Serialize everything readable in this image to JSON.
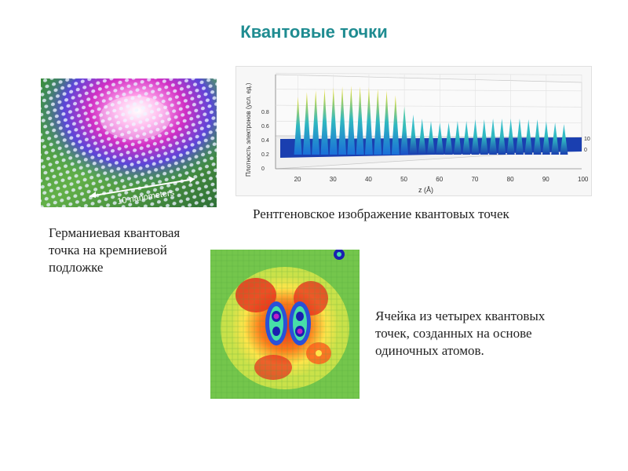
{
  "slide": {
    "title": "Квантовые точки",
    "caption_ge": "Германиевая квантовая точка на кремниевой подложке",
    "caption_xray": "Рентгеновское изображение квантовых точек",
    "caption_cell": "Ячейка из четырех квантовых точек, созданных на основе одиночных атомов.",
    "scale_label": "10 nanometers"
  },
  "chart_data": {
    "type": "area",
    "ylabel": "Плотность электронов (усл. ед.)",
    "xlabel": "z (Å)",
    "x_ticks": [
      20,
      30,
      40,
      50,
      60,
      70,
      80,
      90,
      100
    ],
    "y_ticks": [
      0,
      0.2,
      0.4,
      0.6,
      0.8
    ],
    "depth_ticks": [
      0,
      10
    ],
    "xlim": [
      15,
      100
    ],
    "ylim": [
      0,
      0.9
    ],
    "peaks_z": [
      20,
      22.5,
      25,
      27.5,
      30,
      32.5,
      35,
      37.5,
      40,
      42.5,
      45,
      47.5,
      50,
      52.5,
      55,
      57.5,
      60,
      62.5,
      65,
      67.5,
      70,
      72.5,
      75,
      77.5,
      80,
      82.5,
      85,
      87.5,
      90,
      92.5,
      95
    ],
    "peaks_height": [
      0.72,
      0.78,
      0.8,
      0.82,
      0.84,
      0.85,
      0.86,
      0.85,
      0.84,
      0.82,
      0.8,
      0.74,
      0.6,
      0.5,
      0.45,
      0.42,
      0.4,
      0.4,
      0.42,
      0.42,
      0.44,
      0.44,
      0.45,
      0.45,
      0.45,
      0.45,
      0.44,
      0.44,
      0.42,
      0.4,
      0.38
    ]
  }
}
